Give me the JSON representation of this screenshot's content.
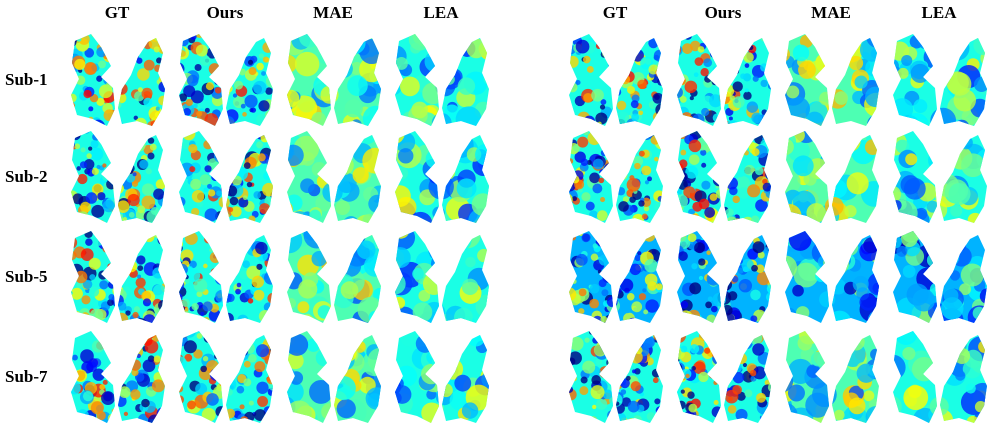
{
  "panels": [
    {
      "columns": [
        "GT",
        "Ours",
        "MAE",
        "LEA"
      ]
    },
    {
      "columns": [
        "GT",
        "Ours",
        "MAE",
        "LEA"
      ]
    }
  ],
  "rows": [
    "Sub-1",
    "Sub-2",
    "Sub-5",
    "Sub-7"
  ]
}
